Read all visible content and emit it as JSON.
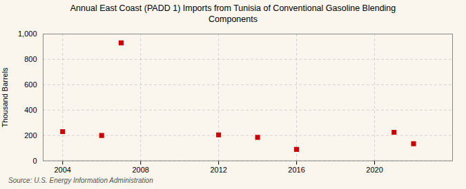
{
  "chart_data": {
    "type": "scatter",
    "title": "Annual East Coast (PADD 1) Imports from Tunisia of Conventional Gasoline Blending\nComponents",
    "ylabel": "Thousand Barrels",
    "source": "Source: U.S. Energy Information Administration",
    "x": [
      2004,
      2006,
      2007,
      2012,
      2014,
      2016,
      2021,
      2022
    ],
    "values": [
      230,
      200,
      930,
      205,
      185,
      90,
      225,
      135
    ],
    "color": "#cc0000",
    "marker": "square",
    "xlim": [
      2003,
      2024
    ],
    "xticks": [
      2004,
      2008,
      2012,
      2016,
      2020
    ],
    "ylim": [
      0,
      1000
    ],
    "yticks": [
      0,
      200,
      400,
      600,
      800,
      {
        "value": 1000,
        "label": "1,000"
      }
    ],
    "grid": true
  }
}
